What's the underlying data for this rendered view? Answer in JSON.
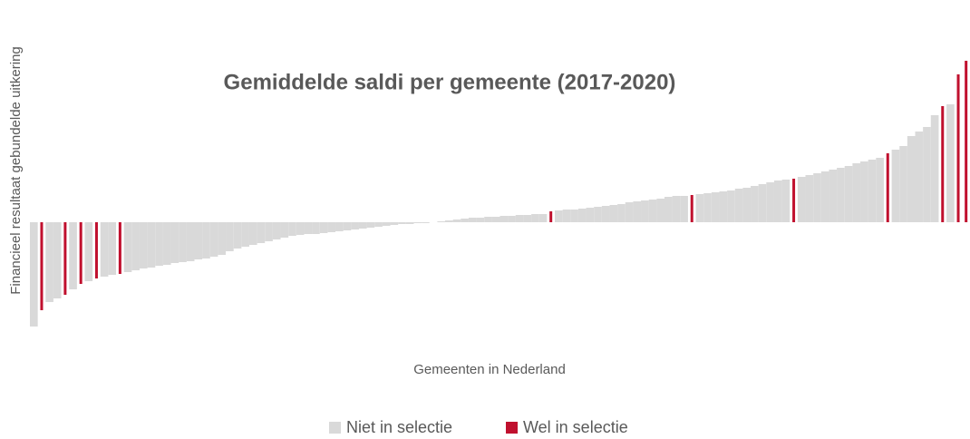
{
  "chart_data": {
    "type": "bar",
    "title": "Gemiddelde saldi per gemeente (2017-2020)",
    "x_label": "Gemeenten in Nederland",
    "y_label": "Financieel resultaat gebundelde uitkering",
    "ylim": [
      -125,
      180
    ],
    "series": [
      {
        "name": "Niet in selectie",
        "color": "#d9d9d9",
        "values": [
          -115,
          null,
          -88,
          -84,
          null,
          -74,
          null,
          -65,
          null,
          -60,
          -58,
          null,
          -55,
          -53,
          -51,
          -50,
          -48,
          -47,
          -45,
          -44,
          -43,
          -41,
          -40,
          -38,
          -36,
          -32,
          -29,
          -27,
          -25,
          -23,
          -21,
          -19,
          -17,
          -15,
          -14,
          -13,
          -13,
          -12,
          -11,
          -10,
          -9,
          -8,
          -7,
          -6,
          -5,
          -4,
          -3,
          -2,
          -2,
          -1,
          -1,
          0,
          1,
          2,
          3,
          4,
          5,
          5,
          6,
          6,
          7,
          7,
          8,
          8,
          9,
          9,
          null,
          13,
          14,
          14,
          15,
          16,
          17,
          18,
          19,
          20,
          22,
          23,
          24,
          25,
          26,
          28,
          29,
          29,
          null,
          31,
          32,
          33,
          34,
          35,
          37,
          38,
          40,
          42,
          44,
          46,
          47,
          null,
          50,
          52,
          54,
          56,
          58,
          60,
          62,
          65,
          67,
          69,
          71,
          null,
          80,
          84,
          95,
          100,
          105,
          118,
          null,
          130,
          null,
          null
        ]
      },
      {
        "name": "Wel in selectie",
        "color": "#c0102e",
        "values": [
          null,
          -97,
          null,
          null,
          -80,
          null,
          -68,
          null,
          -62,
          null,
          null,
          -57,
          null,
          null,
          null,
          null,
          null,
          null,
          null,
          null,
          null,
          null,
          null,
          null,
          null,
          null,
          null,
          null,
          null,
          null,
          null,
          null,
          null,
          null,
          null,
          null,
          null,
          null,
          null,
          null,
          null,
          null,
          null,
          null,
          null,
          null,
          null,
          null,
          null,
          null,
          null,
          null,
          null,
          null,
          null,
          null,
          null,
          null,
          null,
          null,
          null,
          null,
          null,
          null,
          null,
          null,
          12,
          null,
          null,
          null,
          null,
          null,
          null,
          null,
          null,
          null,
          null,
          null,
          null,
          null,
          null,
          null,
          null,
          null,
          30,
          null,
          null,
          null,
          null,
          null,
          null,
          null,
          null,
          null,
          null,
          null,
          null,
          48,
          null,
          null,
          null,
          null,
          null,
          null,
          null,
          null,
          null,
          null,
          null,
          76,
          null,
          null,
          null,
          null,
          null,
          null,
          128,
          null,
          163,
          178
        ]
      }
    ]
  }
}
